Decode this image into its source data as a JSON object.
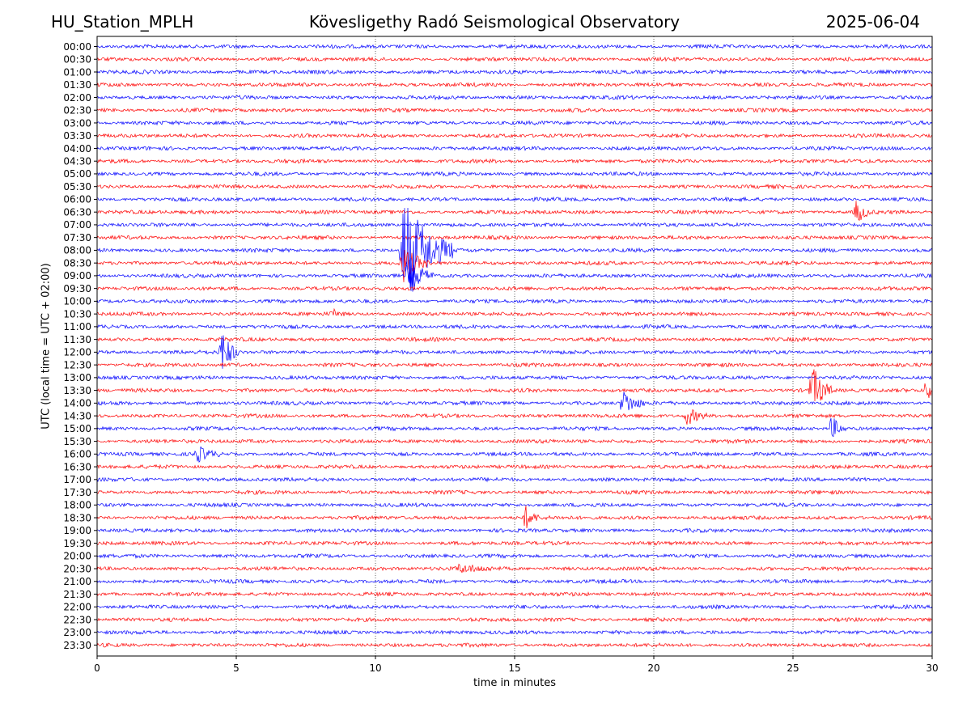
{
  "header": {
    "station": "HU_Station_MPLH",
    "observatory": "Kövesligethy Radó Seismological Observatory",
    "date": "2025-06-04"
  },
  "chart_data": {
    "type": "line",
    "title": "Kövesligethy Radó Seismological Observatory",
    "xlabel": "time in minutes",
    "ylabel": "UTC (local time = UTC + 02:00)",
    "xlim": [
      0,
      30
    ],
    "x_ticks": [
      "0",
      "5",
      "10",
      "15",
      "20",
      "25",
      "30"
    ],
    "grid": "vertical dotted lines at 5-minute intervals",
    "trace_colors": [
      "#0000ff",
      "#ff0000"
    ],
    "row_labels": [
      "00:00",
      "00:30",
      "01:00",
      "01:30",
      "02:00",
      "02:30",
      "03:00",
      "03:30",
      "04:00",
      "04:30",
      "05:00",
      "05:30",
      "06:00",
      "06:30",
      "07:00",
      "07:30",
      "08:00",
      "08:30",
      "09:00",
      "09:30",
      "10:00",
      "10:30",
      "11:00",
      "11:30",
      "12:00",
      "12:30",
      "13:00",
      "13:30",
      "14:00",
      "14:30",
      "15:00",
      "15:30",
      "16:00",
      "16:30",
      "17:00",
      "17:30",
      "18:00",
      "18:30",
      "19:00",
      "19:30",
      "20:00",
      "20:30",
      "21:00",
      "21:30",
      "22:00",
      "22:30",
      "23:00",
      "23:30"
    ],
    "events": [
      {
        "row": "06:30",
        "minute": 27.3,
        "amplitude": 1.1,
        "duration_min": 0.5
      },
      {
        "row": "08:00",
        "minute": 11.0,
        "amplitude": 5.0,
        "duration_min": 1.8
      },
      {
        "row": "08:30",
        "minute": 11.0,
        "amplitude": 1.6,
        "duration_min": 0.9
      },
      {
        "row": "09:00",
        "minute": 11.2,
        "amplitude": 1.8,
        "duration_min": 0.9
      },
      {
        "row": "10:30",
        "minute": 8.5,
        "amplitude": 0.3,
        "duration_min": 0.4
      },
      {
        "row": "12:00",
        "minute": 4.5,
        "amplitude": 2.0,
        "duration_min": 0.6
      },
      {
        "row": "13:30",
        "minute": 25.7,
        "amplitude": 2.2,
        "duration_min": 0.7
      },
      {
        "row": "13:30",
        "minute": 29.8,
        "amplitude": 1.0,
        "duration_min": 0.4
      },
      {
        "row": "14:00",
        "minute": 18.9,
        "amplitude": 1.2,
        "duration_min": 0.8
      },
      {
        "row": "14:30",
        "minute": 21.2,
        "amplitude": 0.8,
        "duration_min": 0.8
      },
      {
        "row": "15:00",
        "minute": 26.4,
        "amplitude": 1.1,
        "duration_min": 0.5
      },
      {
        "row": "16:00",
        "minute": 3.6,
        "amplitude": 0.7,
        "duration_min": 0.8
      },
      {
        "row": "18:30",
        "minute": 15.4,
        "amplitude": 1.0,
        "duration_min": 0.5
      },
      {
        "row": "20:30",
        "minute": 13.0,
        "amplitude": 0.3,
        "duration_min": 2.0
      }
    ]
  }
}
